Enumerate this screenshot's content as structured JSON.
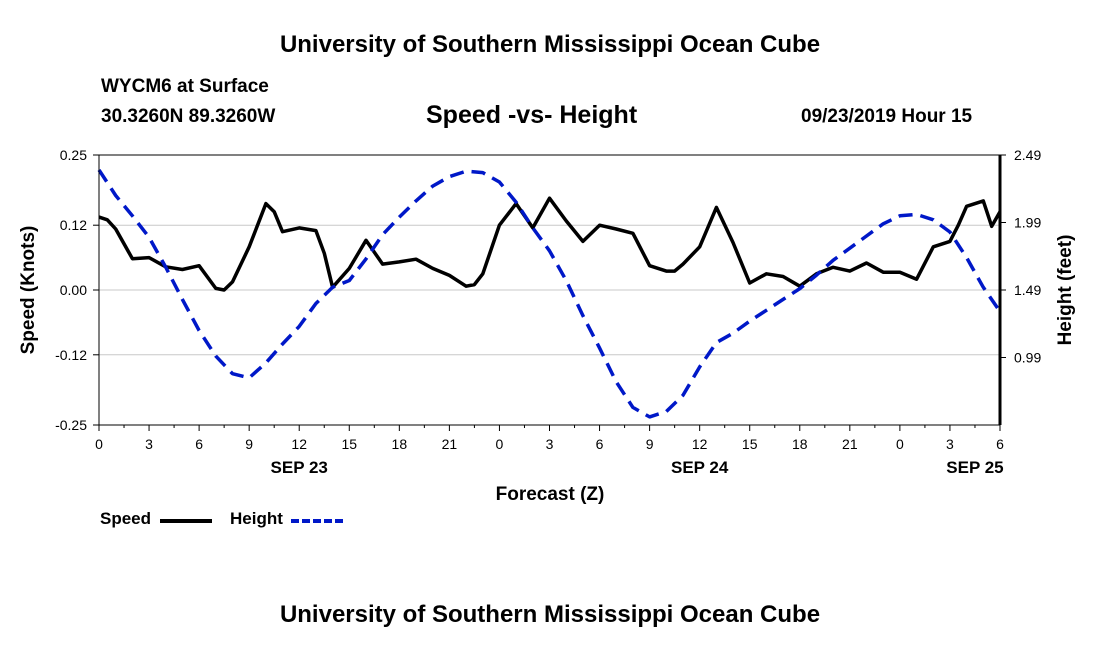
{
  "header": {
    "title": "University of Southern Mississippi Ocean Cube",
    "station": "WYCM6 at Surface",
    "coords": "30.3260N 89.3260W",
    "plot_title": "Speed -vs- Height",
    "datetime": "09/23/2019 Hour 15"
  },
  "footer": {
    "title": "University of Southern Mississippi Ocean Cube"
  },
  "legend": {
    "speed_label": "Speed",
    "height_label": "Height",
    "speed_color": "#000000",
    "height_color": "#0018c8"
  },
  "chart_data": {
    "type": "line",
    "title": "Speed -vs- Height",
    "xlabel": "Forecast (Z)",
    "ylabel_left": "Speed (Knots)",
    "ylabel_right": "Height (feet)",
    "x_unit": "hours from 09/23 00Z",
    "xlim": [
      0,
      54
    ],
    "x_ticks": [
      0,
      3,
      6,
      9,
      12,
      15,
      18,
      21,
      24,
      27,
      30,
      33,
      36,
      39,
      42,
      45,
      48,
      51,
      54
    ],
    "x_tick_labels": [
      "0",
      "3",
      "6",
      "9",
      "12",
      "15",
      "18",
      "21",
      "0",
      "3",
      "6",
      "9",
      "12",
      "15",
      "18",
      "21",
      "0",
      "3",
      "6"
    ],
    "date_labels": [
      {
        "x": 12,
        "label": "SEP 23"
      },
      {
        "x": 36,
        "label": "SEP 24"
      },
      {
        "x": 52.5,
        "label": "SEP 25"
      }
    ],
    "ylim_left": [
      -0.25,
      0.25
    ],
    "y_ticks_left": [
      -0.25,
      -0.12,
      0.0,
      0.12,
      0.25
    ],
    "y_tick_labels_left": [
      "-0.25",
      "-0.12",
      "0.00",
      "0.12",
      "0.25"
    ],
    "ylim_right": [
      0.49,
      2.49
    ],
    "y_ticks_right": [
      0.99,
      1.49,
      1.99,
      2.49
    ],
    "y_tick_labels_right": [
      "0.99",
      "1.49",
      "1.99",
      "2.49"
    ],
    "grid": true,
    "series": [
      {
        "name": "Speed",
        "axis": "left",
        "style": "solid",
        "color": "#000000",
        "x": [
          0,
          0.5,
          1,
          2,
          3,
          4,
          5,
          6,
          7,
          7.5,
          8,
          9,
          10,
          10.5,
          11,
          12,
          13,
          13.5,
          14,
          15,
          16,
          17,
          18,
          19,
          20,
          21,
          22,
          22.5,
          23,
          24,
          25,
          26,
          27,
          28,
          29,
          30,
          31,
          32,
          33,
          34,
          34.5,
          35,
          36,
          37,
          38,
          39,
          40,
          41,
          42,
          43,
          44,
          45,
          46,
          47,
          48,
          49,
          50,
          51,
          51.5,
          52,
          53,
          53.5,
          54
        ],
        "y": [
          0.135,
          0.13,
          0.113,
          0.058,
          0.06,
          0.043,
          0.038,
          0.045,
          0.003,
          0.0,
          0.015,
          0.08,
          0.16,
          0.145,
          0.108,
          0.115,
          0.11,
          0.068,
          0.005,
          0.04,
          0.092,
          0.048,
          0.052,
          0.057,
          0.04,
          0.027,
          0.007,
          0.01,
          0.03,
          0.12,
          0.16,
          0.115,
          0.17,
          0.128,
          0.09,
          0.12,
          0.113,
          0.105,
          0.045,
          0.035,
          0.035,
          0.048,
          0.08,
          0.153,
          0.088,
          0.013,
          0.03,
          0.025,
          0.007,
          0.03,
          0.042,
          0.035,
          0.05,
          0.033,
          0.033,
          0.02,
          0.08,
          0.09,
          0.12,
          0.155,
          0.165,
          0.118,
          0.145
        ]
      },
      {
        "name": "Height",
        "axis": "right",
        "style": "dashed",
        "color": "#0018c8",
        "x": [
          0,
          1,
          2,
          3,
          4,
          5,
          6,
          7,
          8,
          9,
          10,
          11,
          12,
          13,
          14,
          15,
          16,
          17,
          18,
          19,
          20,
          21,
          22,
          23,
          24,
          25,
          26,
          27,
          28,
          29,
          30,
          31,
          32,
          33,
          34,
          35,
          36,
          37,
          38,
          39,
          40,
          41,
          42,
          43,
          44,
          45,
          46,
          47,
          48,
          49,
          50,
          51,
          52,
          53,
          54
        ],
        "y": [
          2.38,
          2.19,
          2.04,
          1.88,
          1.66,
          1.42,
          1.19,
          1.0,
          0.87,
          0.84,
          0.95,
          1.09,
          1.22,
          1.39,
          1.51,
          1.56,
          1.72,
          1.9,
          2.03,
          2.15,
          2.26,
          2.33,
          2.37,
          2.36,
          2.29,
          2.14,
          1.95,
          1.78,
          1.56,
          1.3,
          1.06,
          0.81,
          0.62,
          0.55,
          0.59,
          0.71,
          0.92,
          1.1,
          1.17,
          1.26,
          1.34,
          1.42,
          1.5,
          1.6,
          1.71,
          1.8,
          1.89,
          1.98,
          2.04,
          2.05,
          2.01,
          1.92,
          1.73,
          1.51,
          1.33
        ]
      }
    ]
  }
}
